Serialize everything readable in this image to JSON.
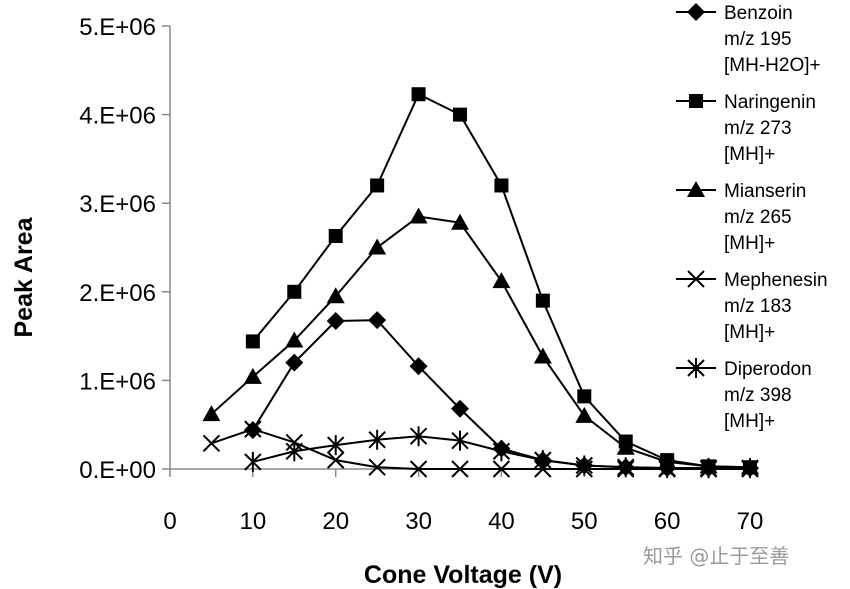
{
  "chart_data": {
    "type": "line",
    "xlabel": "Cone Voltage (V)",
    "ylabel": "Peak Area",
    "xlim": [
      0,
      70
    ],
    "ylim": [
      0,
      5000000
    ],
    "xticks": [
      "0",
      "10",
      "20",
      "30",
      "40",
      "50",
      "60",
      "70"
    ],
    "yticks": [
      "0.E+00",
      "1.E+06",
      "2.E+06",
      "3.E+06",
      "4.E+06",
      "5.E+06"
    ],
    "grid": false,
    "legend_position": "right",
    "series": [
      {
        "name": "Benzoin m/z 195 [MH-H2O]+",
        "legend_lines": [
          "Benzoin",
          "m/z 195",
          "[MH-H2O]+"
        ],
        "marker": "diamond",
        "x": [
          10,
          15,
          20,
          25,
          30,
          35,
          40,
          45,
          50,
          55,
          60,
          65,
          70
        ],
        "values": [
          440000,
          1200000,
          1670000,
          1680000,
          1160000,
          680000,
          230000,
          100000,
          40000,
          20000,
          10000,
          10000,
          10000
        ]
      },
      {
        "name": "Naringenin m/z 273 [MH]+",
        "legend_lines": [
          "Naringenin",
          "m/z 273",
          "[MH]+"
        ],
        "marker": "square",
        "x": [
          10,
          15,
          20,
          25,
          30,
          35,
          40,
          45,
          50,
          55,
          60,
          65,
          70
        ],
        "values": [
          1440000,
          2000000,
          2630000,
          3200000,
          4230000,
          4000000,
          3200000,
          1900000,
          820000,
          310000,
          100000,
          30000,
          20000
        ]
      },
      {
        "name": "Mianserin m/z 265 [MH]+",
        "legend_lines": [
          "Mianserin",
          "m/z 265",
          "[MH]+"
        ],
        "marker": "triangle",
        "x": [
          5,
          10,
          15,
          20,
          25,
          30,
          35,
          40,
          45,
          50,
          55,
          60,
          65,
          70
        ],
        "values": [
          620000,
          1040000,
          1450000,
          1950000,
          2500000,
          2850000,
          2780000,
          2120000,
          1270000,
          600000,
          240000,
          80000,
          30000,
          20000
        ]
      },
      {
        "name": "Mephenesin m/z 183 [MH]+",
        "legend_lines": [
          "Mephenesin",
          "m/z 183",
          "[MH]+"
        ],
        "marker": "x",
        "x": [
          5,
          10,
          15,
          20,
          25,
          30,
          35,
          40,
          45,
          50,
          55,
          60,
          65,
          70
        ],
        "values": [
          290000,
          450000,
          300000,
          100000,
          20000,
          0,
          0,
          0,
          0,
          0,
          0,
          0,
          0,
          0
        ]
      },
      {
        "name": "Diperodon m/z 398 [MH]+",
        "legend_lines": [
          "Diperodon",
          "m/z 398",
          "[MH]+"
        ],
        "marker": "star",
        "x": [
          10,
          15,
          20,
          25,
          30,
          35,
          40,
          45,
          50,
          55,
          60,
          65,
          70
        ],
        "values": [
          80000,
          200000,
          270000,
          330000,
          370000,
          320000,
          200000,
          100000,
          40000,
          20000,
          10000,
          10000,
          10000
        ]
      }
    ]
  },
  "watermark": "知乎 @止于至善"
}
